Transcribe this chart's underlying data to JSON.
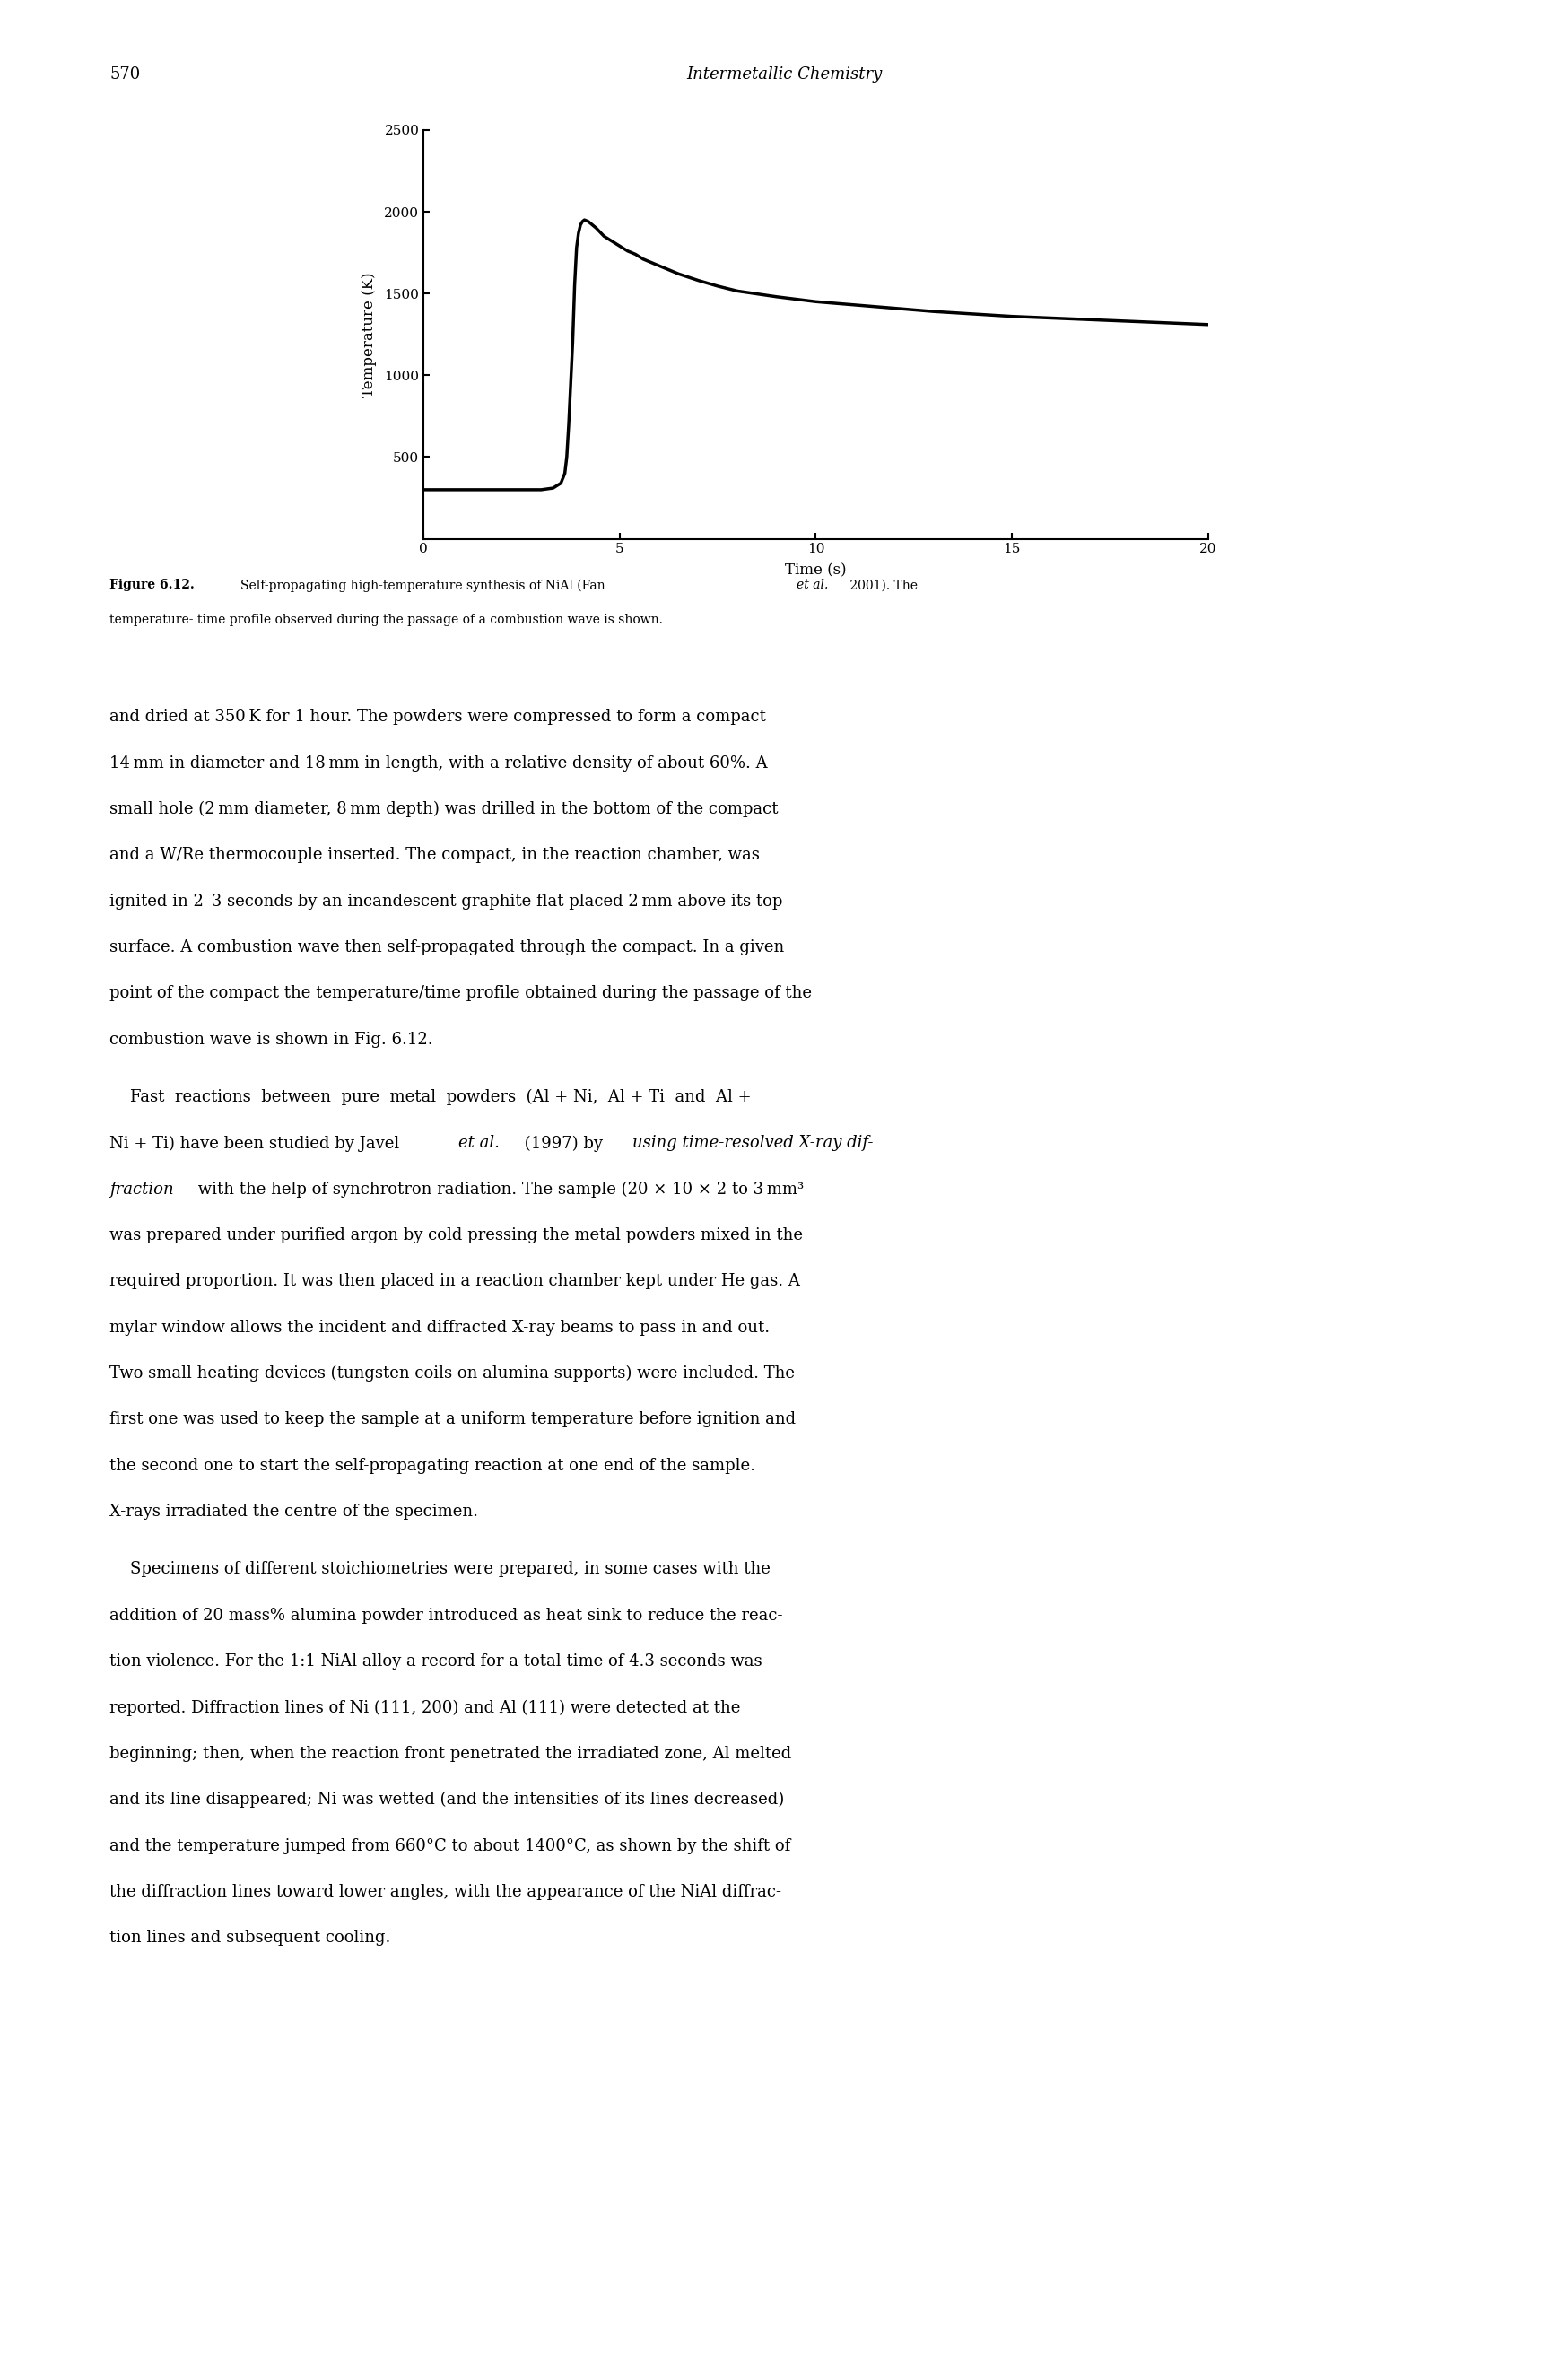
{
  "page_number": "570",
  "header_title": "Intermetallic Chemistry",
  "xlabel": "Time (s)",
  "ylabel": "Temperature (K)",
  "xlim": [
    0,
    20
  ],
  "ylim": [
    0,
    2500
  ],
  "xticks": [
    0,
    5,
    10,
    15,
    20
  ],
  "yticks": [
    500,
    1000,
    1500,
    2000,
    2500
  ],
  "line_color": "#000000",
  "line_width": 2.5,
  "background_color": "#ffffff",
  "curve_x": [
    0.0,
    0.5,
    1.0,
    1.5,
    2.0,
    2.5,
    3.0,
    3.3,
    3.5,
    3.6,
    3.65,
    3.7,
    3.75,
    3.8,
    3.85,
    3.9,
    3.95,
    4.0,
    4.05,
    4.1,
    4.15,
    4.2,
    4.4,
    4.6,
    4.8,
    5.0,
    5.2,
    5.4,
    5.6,
    5.8,
    6.0,
    6.5,
    7.0,
    7.5,
    8.0,
    9.0,
    10.0,
    11.0,
    12.0,
    13.0,
    14.0,
    15.0,
    16.0,
    17.0,
    18.0,
    19.0,
    20.0
  ],
  "curve_y": [
    300,
    300,
    300,
    300,
    300,
    300,
    300,
    310,
    340,
    400,
    500,
    700,
    950,
    1200,
    1550,
    1780,
    1870,
    1920,
    1940,
    1950,
    1945,
    1940,
    1900,
    1850,
    1820,
    1790,
    1760,
    1740,
    1710,
    1690,
    1670,
    1620,
    1580,
    1545,
    1515,
    1480,
    1450,
    1430,
    1410,
    1390,
    1375,
    1360,
    1350,
    1340,
    1330,
    1320,
    1310
  ],
  "font_size_header": 13,
  "font_size_axis_label": 12,
  "font_size_tick": 11,
  "font_size_caption": 10,
  "font_size_body": 13,
  "para1_lines": [
    "and dried at 350 K for 1 hour. The powders were compressed to form a compact",
    "14 mm in diameter and 18 mm in length, with a relative density of about 60%. A",
    "small hole (2 mm diameter, 8 mm depth) was drilled in the bottom of the compact",
    "and a W/Re thermocouple inserted. The compact, in the reaction chamber, was",
    "ignited in 2–3 seconds by an incandescent graphite flat placed 2 mm above its top",
    "surface. A combustion wave then self-propagated through the compact. In a given",
    "point of the compact the temperature/time profile obtained during the passage of the",
    "combustion wave is shown in Fig. 6.12."
  ],
  "para2_lines": [
    "    Fast  reactions  between  pure  metal  powders  (Al + Ni,  Al + Ti  and  Al +",
    "Ni + Ti) have been studied by Javel et al. (1997) by using time-resolved X-ray dif-",
    "fraction with the help of synchrotron radiation. The sample (20 × 10 × 2 to 3 mm³",
    "was prepared under purified argon by cold pressing the metal powders mixed in the",
    "required proportion. It was then placed in a reaction chamber kept under He gas. A",
    "mylar window allows the incident and diffracted X-ray beams to pass in and out.",
    "Two small heating devices (tungsten coils on alumina supports) were included. The",
    "first one was used to keep the sample at a uniform temperature before ignition and",
    "the second one to start the self-propagating reaction at one end of the sample.",
    "X-rays irradiated the centre of the specimen."
  ],
  "para3_lines": [
    "    Specimens of different stoichiometries were prepared, in some cases with the",
    "addition of 20 mass% alumina powder introduced as heat sink to reduce the reac-",
    "tion violence. For the 1:1 NiAl alloy a record for a total time of 4.3 seconds was",
    "reported. Diffraction lines of Ni (111, 200) and Al (111) were detected at the",
    "beginning; then, when the reaction front penetrated the irradiated zone, Al melted",
    "and its line disappeared; Ni was wetted (and the intensities of its lines decreased)",
    "and the temperature jumped from 660°C to about 1400°C, as shown by the shift of",
    "the diffraction lines toward lower angles, with the appearance of the NiAl diffrac-",
    "tion lines and subsequent cooling."
  ]
}
